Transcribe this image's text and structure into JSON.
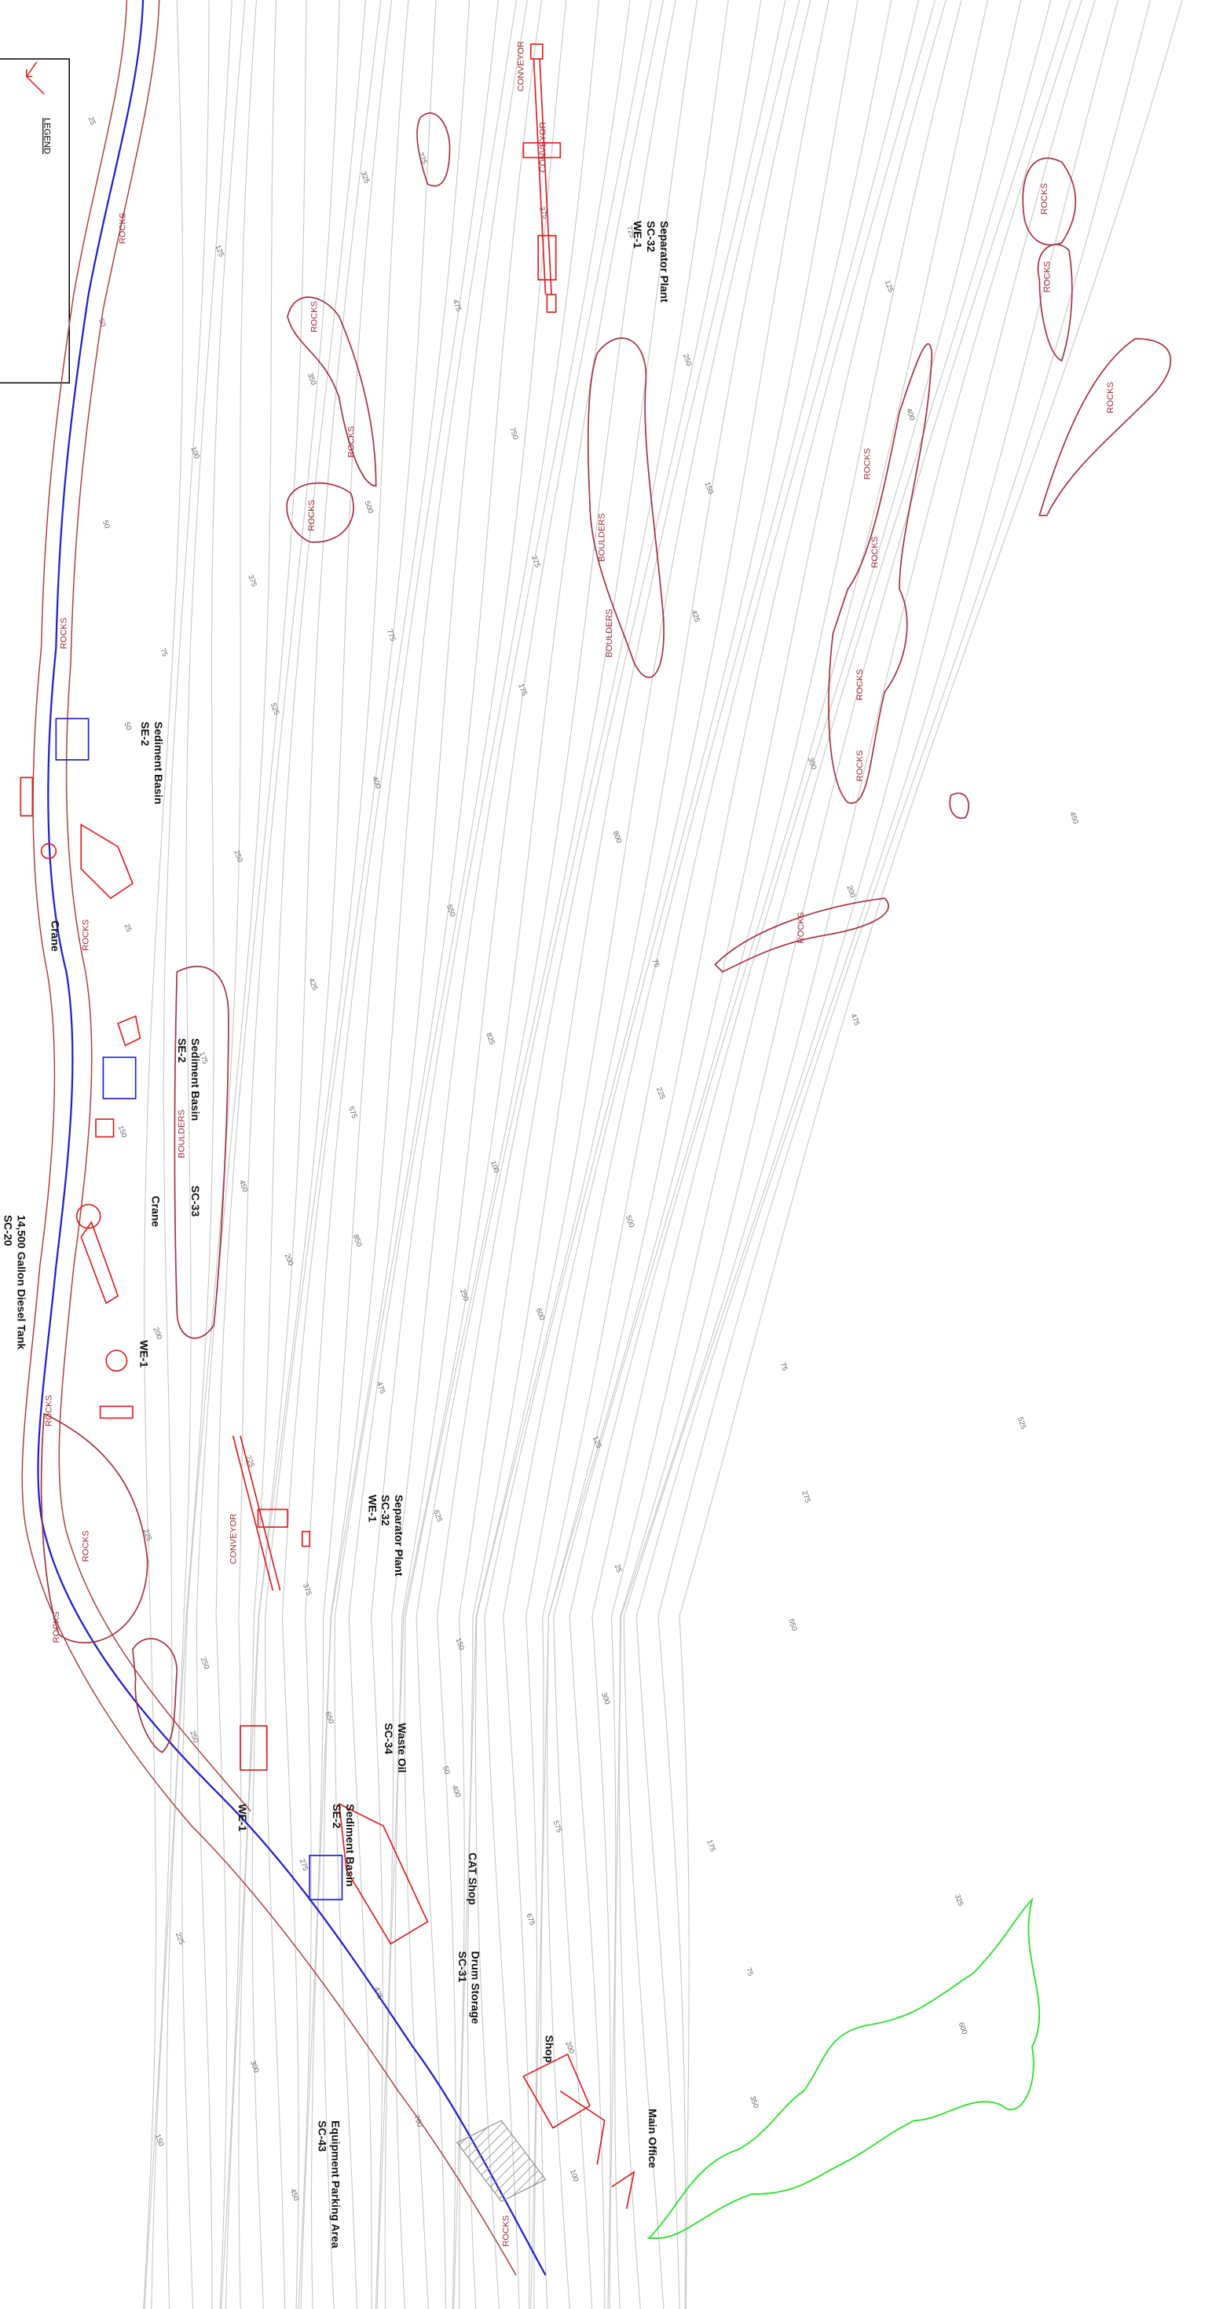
{
  "legend": {
    "title": "LEGEND"
  },
  "callouts": [
    {
      "lines": [
        "Separator Plant",
        "SC-32",
        "WE-1"
      ]
    },
    {
      "lines": [
        "Sediment Basin",
        "SE-2"
      ]
    },
    {
      "lines": [
        "Crane"
      ]
    },
    {
      "lines": [
        "Sediment Basin",
        "SE-2"
      ]
    },
    {
      "lines": [
        "Crane"
      ]
    },
    {
      "lines": [
        "SC-33"
      ]
    },
    {
      "lines": [
        "14,500 Gallon Diesel Tank",
        "SC-20"
      ]
    },
    {
      "lines": [
        "WE-1"
      ]
    },
    {
      "lines": [
        "Separator Plant",
        "SC-32",
        "WE-1"
      ]
    },
    {
      "lines": [
        "Waste Oil",
        "SC-34"
      ]
    },
    {
      "lines": [
        "Sediment Basin",
        "SE-2"
      ]
    },
    {
      "lines": [
        "CAT Shop"
      ]
    },
    {
      "lines": [
        "Drum Storage",
        "SC-31"
      ]
    },
    {
      "lines": [
        "WE-1"
      ]
    },
    {
      "lines": [
        "Shop"
      ]
    },
    {
      "lines": [
        "Main Office"
      ]
    },
    {
      "lines": [
        "Equipment Parking Area",
        "SC-43"
      ]
    }
  ],
  "area_labels": [
    "ROCKS",
    "ROCKS",
    "ROCKS",
    "ROCKS",
    "ROCKS",
    "ROCKS",
    "ROCKS",
    "ROCKS",
    "ROCKS",
    "ROCKS",
    "ROCKS",
    "ROCKS",
    "ROCKS",
    "ROCKS",
    "ROCKS",
    "ROCKS",
    "ROCKS",
    "ROCKS",
    "BOULDERS",
    "BOULDERS",
    "BOULDERS",
    "CONVEYOR",
    "CONVEYOR",
    "CONVEYOR"
  ],
  "contour_labels": [
    "25",
    "50",
    "50",
    "50",
    "25",
    "150",
    "200",
    "225",
    "250",
    "225",
    "150",
    "125",
    "100",
    "75",
    "250",
    "175",
    "200",
    "225",
    "250",
    "275",
    "300",
    "325",
    "350",
    "375",
    "400",
    "425",
    "450",
    "475",
    "375",
    "400",
    "425",
    "450",
    "475",
    "500",
    "525",
    "550",
    "575",
    "600",
    "625",
    "650",
    "675",
    "700",
    "725",
    "750",
    "775",
    "800",
    "825",
    "850",
    "125",
    "150",
    "175",
    "200",
    "225",
    "250",
    "275",
    "300",
    "75",
    "100",
    "75",
    "25",
    "50",
    "75",
    "100",
    "125",
    "150",
    "175",
    "200",
    "225",
    "250",
    "275",
    "300",
    "325",
    "350",
    "375",
    "400",
    "425",
    "450",
    "475",
    "500",
    "525",
    "550",
    "575",
    "600"
  ]
}
